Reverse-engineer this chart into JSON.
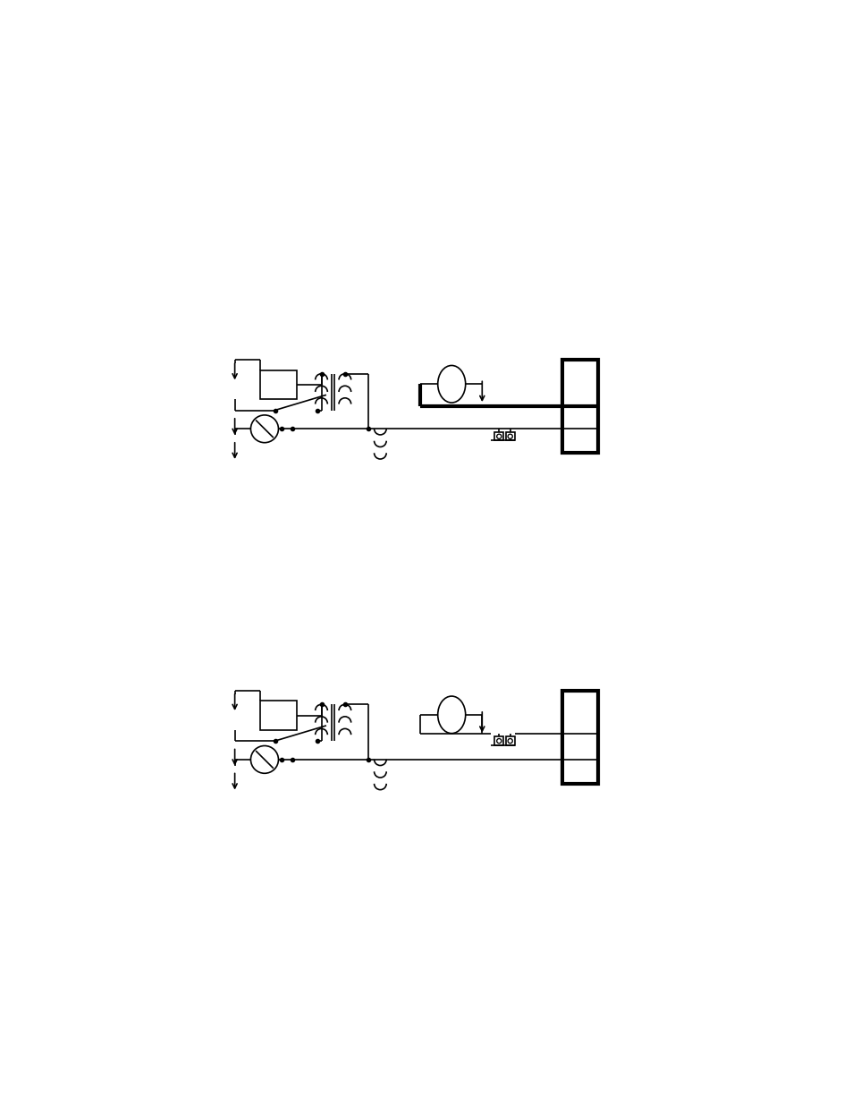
{
  "bg": "#ffffff",
  "lc": "#000000",
  "lw": 1.2,
  "lw_thick": 3.0,
  "figw": 9.54,
  "figh": 12.35,
  "dpi": 100,
  "diagrams": [
    {
      "oy": 6.6
    },
    {
      "oy": 1.8
    }
  ]
}
